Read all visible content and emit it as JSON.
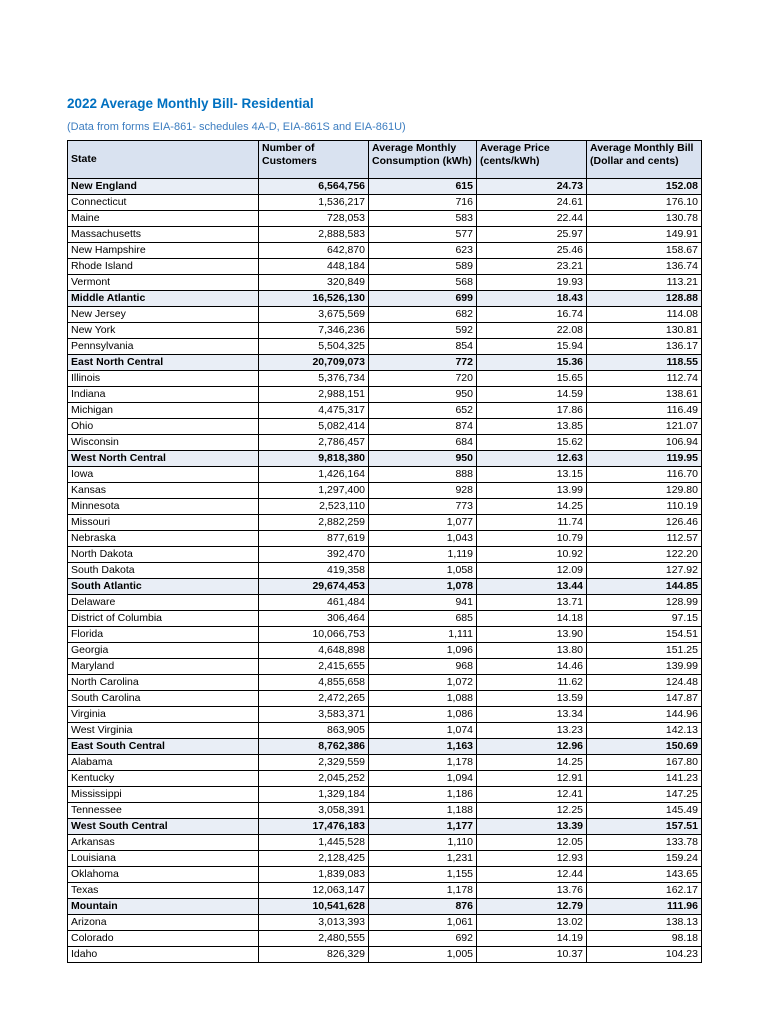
{
  "page": {
    "title": "2022 Average Monthly Bill- Residential",
    "subtitle": "(Data from forms EIA-861- schedules 4A-D, EIA-861S and EIA-861U)"
  },
  "colors": {
    "title_blue": "#0070C0",
    "subtitle_blue": "#3C7DC0",
    "header_bg": "#D9E2F0",
    "region_bg": "#E9EEF6"
  },
  "table": {
    "headers": [
      "State",
      "Number of Customers",
      "Average Monthly Consumption (kWh)",
      "Average Price (cents/kWh)",
      "Average Monthly Bill (Dollar and cents)"
    ],
    "rows": [
      {
        "state": "New England",
        "customers": "6,564,756",
        "consumption": "615",
        "price": "24.73",
        "bill": "152.08",
        "region": true
      },
      {
        "state": "Connecticut",
        "customers": "1,536,217",
        "consumption": "716",
        "price": "24.61",
        "bill": "176.10",
        "region": false
      },
      {
        "state": "Maine",
        "customers": "728,053",
        "consumption": "583",
        "price": "22.44",
        "bill": "130.78",
        "region": false
      },
      {
        "state": "Massachusetts",
        "customers": "2,888,583",
        "consumption": "577",
        "price": "25.97",
        "bill": "149.91",
        "region": false
      },
      {
        "state": "New Hampshire",
        "customers": "642,870",
        "consumption": "623",
        "price": "25.46",
        "bill": "158.67",
        "region": false
      },
      {
        "state": "Rhode Island",
        "customers": "448,184",
        "consumption": "589",
        "price": "23.21",
        "bill": "136.74",
        "region": false
      },
      {
        "state": "Vermont",
        "customers": "320,849",
        "consumption": "568",
        "price": "19.93",
        "bill": "113.21",
        "region": false
      },
      {
        "state": "Middle Atlantic",
        "customers": "16,526,130",
        "consumption": "699",
        "price": "18.43",
        "bill": "128.88",
        "region": true
      },
      {
        "state": "New Jersey",
        "customers": "3,675,569",
        "consumption": "682",
        "price": "16.74",
        "bill": "114.08",
        "region": false
      },
      {
        "state": "New York",
        "customers": "7,346,236",
        "consumption": "592",
        "price": "22.08",
        "bill": "130.81",
        "region": false
      },
      {
        "state": "Pennsylvania",
        "customers": "5,504,325",
        "consumption": "854",
        "price": "15.94",
        "bill": "136.17",
        "region": false
      },
      {
        "state": "East North Central",
        "customers": "20,709,073",
        "consumption": "772",
        "price": "15.36",
        "bill": "118.55",
        "region": true
      },
      {
        "state": "Illinois",
        "customers": "5,376,734",
        "consumption": "720",
        "price": "15.65",
        "bill": "112.74",
        "region": false
      },
      {
        "state": "Indiana",
        "customers": "2,988,151",
        "consumption": "950",
        "price": "14.59",
        "bill": "138.61",
        "region": false
      },
      {
        "state": "Michigan",
        "customers": "4,475,317",
        "consumption": "652",
        "price": "17.86",
        "bill": "116.49",
        "region": false
      },
      {
        "state": "Ohio",
        "customers": "5,082,414",
        "consumption": "874",
        "price": "13.85",
        "bill": "121.07",
        "region": false
      },
      {
        "state": "Wisconsin",
        "customers": "2,786,457",
        "consumption": "684",
        "price": "15.62",
        "bill": "106.94",
        "region": false
      },
      {
        "state": "West North Central",
        "customers": "9,818,380",
        "consumption": "950",
        "price": "12.63",
        "bill": "119.95",
        "region": true
      },
      {
        "state": "Iowa",
        "customers": "1,426,164",
        "consumption": "888",
        "price": "13.15",
        "bill": "116.70",
        "region": false
      },
      {
        "state": "Kansas",
        "customers": "1,297,400",
        "consumption": "928",
        "price": "13.99",
        "bill": "129.80",
        "region": false
      },
      {
        "state": "Minnesota",
        "customers": "2,523,110",
        "consumption": "773",
        "price": "14.25",
        "bill": "110.19",
        "region": false
      },
      {
        "state": "Missouri",
        "customers": "2,882,259",
        "consumption": "1,077",
        "price": "11.74",
        "bill": "126.46",
        "region": false
      },
      {
        "state": "Nebraska",
        "customers": "877,619",
        "consumption": "1,043",
        "price": "10.79",
        "bill": "112.57",
        "region": false
      },
      {
        "state": "North Dakota",
        "customers": "392,470",
        "consumption": "1,119",
        "price": "10.92",
        "bill": "122.20",
        "region": false
      },
      {
        "state": "South Dakota",
        "customers": "419,358",
        "consumption": "1,058",
        "price": "12.09",
        "bill": "127.92",
        "region": false
      },
      {
        "state": "South Atlantic",
        "customers": "29,674,453",
        "consumption": "1,078",
        "price": "13.44",
        "bill": "144.85",
        "region": true
      },
      {
        "state": "Delaware",
        "customers": "461,484",
        "consumption": "941",
        "price": "13.71",
        "bill": "128.99",
        "region": false
      },
      {
        "state": "District of Columbia",
        "customers": "306,464",
        "consumption": "685",
        "price": "14.18",
        "bill": "97.15",
        "region": false
      },
      {
        "state": "Florida",
        "customers": "10,066,753",
        "consumption": "1,111",
        "price": "13.90",
        "bill": "154.51",
        "region": false
      },
      {
        "state": "Georgia",
        "customers": "4,648,898",
        "consumption": "1,096",
        "price": "13.80",
        "bill": "151.25",
        "region": false
      },
      {
        "state": "Maryland",
        "customers": "2,415,655",
        "consumption": "968",
        "price": "14.46",
        "bill": "139.99",
        "region": false
      },
      {
        "state": "North Carolina",
        "customers": "4,855,658",
        "consumption": "1,072",
        "price": "11.62",
        "bill": "124.48",
        "region": false
      },
      {
        "state": "South Carolina",
        "customers": "2,472,265",
        "consumption": "1,088",
        "price": "13.59",
        "bill": "147.87",
        "region": false
      },
      {
        "state": "Virginia",
        "customers": "3,583,371",
        "consumption": "1,086",
        "price": "13.34",
        "bill": "144.96",
        "region": false
      },
      {
        "state": "West Virginia",
        "customers": "863,905",
        "consumption": "1,074",
        "price": "13.23",
        "bill": "142.13",
        "region": false
      },
      {
        "state": "East South Central",
        "customers": "8,762,386",
        "consumption": "1,163",
        "price": "12.96",
        "bill": "150.69",
        "region": true
      },
      {
        "state": "Alabama",
        "customers": "2,329,559",
        "consumption": "1,178",
        "price": "14.25",
        "bill": "167.80",
        "region": false
      },
      {
        "state": "Kentucky",
        "customers": "2,045,252",
        "consumption": "1,094",
        "price": "12.91",
        "bill": "141.23",
        "region": false
      },
      {
        "state": "Mississippi",
        "customers": "1,329,184",
        "consumption": "1,186",
        "price": "12.41",
        "bill": "147.25",
        "region": false
      },
      {
        "state": "Tennessee",
        "customers": "3,058,391",
        "consumption": "1,188",
        "price": "12.25",
        "bill": "145.49",
        "region": false
      },
      {
        "state": "West South Central",
        "customers": "17,476,183",
        "consumption": "1,177",
        "price": "13.39",
        "bill": "157.51",
        "region": true
      },
      {
        "state": "Arkansas",
        "customers": "1,445,528",
        "consumption": "1,110",
        "price": "12.05",
        "bill": "133.78",
        "region": false
      },
      {
        "state": "Louisiana",
        "customers": "2,128,425",
        "consumption": "1,231",
        "price": "12.93",
        "bill": "159.24",
        "region": false
      },
      {
        "state": "Oklahoma",
        "customers": "1,839,083",
        "consumption": "1,155",
        "price": "12.44",
        "bill": "143.65",
        "region": false
      },
      {
        "state": "Texas",
        "customers": "12,063,147",
        "consumption": "1,178",
        "price": "13.76",
        "bill": "162.17",
        "region": false
      },
      {
        "state": "Mountain",
        "customers": "10,541,628",
        "consumption": "876",
        "price": "12.79",
        "bill": "111.96",
        "region": true
      },
      {
        "state": "Arizona",
        "customers": "3,013,393",
        "consumption": "1,061",
        "price": "13.02",
        "bill": "138.13",
        "region": false
      },
      {
        "state": "Colorado",
        "customers": "2,480,555",
        "consumption": "692",
        "price": "14.19",
        "bill": "98.18",
        "region": false
      },
      {
        "state": "Idaho",
        "customers": "826,329",
        "consumption": "1,005",
        "price": "10.37",
        "bill": "104.23",
        "region": false
      }
    ]
  }
}
